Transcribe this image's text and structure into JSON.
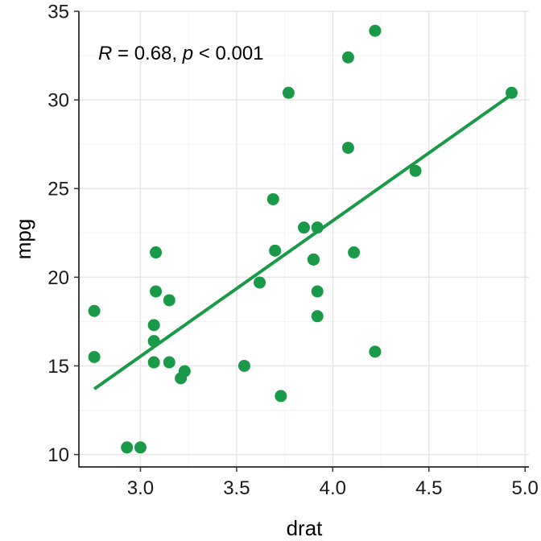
{
  "chart_data": {
    "type": "scatter",
    "title": "",
    "xlabel": "drat",
    "ylabel": "mpg",
    "xlim": [
      2.68,
      5.02
    ],
    "ylim": [
      9.3,
      35.0
    ],
    "x_ticks": [
      3.0,
      3.5,
      4.0,
      4.5,
      5.0
    ],
    "x_tick_labels": [
      "3.0",
      "3.5",
      "4.0",
      "4.5",
      "5.0"
    ],
    "y_ticks": [
      10,
      15,
      20,
      25,
      30,
      35
    ],
    "y_tick_labels": [
      "10",
      "15",
      "20",
      "25",
      "30",
      "35"
    ],
    "grid": true,
    "legend": "none",
    "point_color": "#1a9a48",
    "line_color": "#1a9a48",
    "annotation": {
      "r_symbol": "R",
      "r_text": " = 0.68, ",
      "p_symbol": "p",
      "p_text": " < 0.001"
    },
    "points": [
      {
        "x": 3.9,
        "y": 21.0
      },
      {
        "x": 3.9,
        "y": 21.0
      },
      {
        "x": 3.85,
        "y": 22.8
      },
      {
        "x": 3.08,
        "y": 21.4
      },
      {
        "x": 3.15,
        "y": 18.7
      },
      {
        "x": 2.76,
        "y": 18.1
      },
      {
        "x": 3.21,
        "y": 14.3
      },
      {
        "x": 3.69,
        "y": 24.4
      },
      {
        "x": 3.92,
        "y": 22.8
      },
      {
        "x": 3.92,
        "y": 19.2
      },
      {
        "x": 3.92,
        "y": 17.8
      },
      {
        "x": 3.07,
        "y": 16.4
      },
      {
        "x": 3.07,
        "y": 17.3
      },
      {
        "x": 3.07,
        "y": 15.2
      },
      {
        "x": 2.93,
        "y": 10.4
      },
      {
        "x": 3.0,
        "y": 10.4
      },
      {
        "x": 3.23,
        "y": 14.7
      },
      {
        "x": 4.08,
        "y": 32.4
      },
      {
        "x": 4.93,
        "y": 30.4
      },
      {
        "x": 4.22,
        "y": 33.9
      },
      {
        "x": 3.7,
        "y": 21.5
      },
      {
        "x": 2.76,
        "y": 15.5
      },
      {
        "x": 3.15,
        "y": 15.2
      },
      {
        "x": 3.73,
        "y": 13.3
      },
      {
        "x": 3.08,
        "y": 19.2
      },
      {
        "x": 4.08,
        "y": 27.3
      },
      {
        "x": 4.43,
        "y": 26.0
      },
      {
        "x": 3.77,
        "y": 30.4
      },
      {
        "x": 4.22,
        "y": 15.8
      },
      {
        "x": 3.62,
        "y": 19.7
      },
      {
        "x": 3.54,
        "y": 15.0
      },
      {
        "x": 4.11,
        "y": 21.4
      }
    ],
    "fit_line": {
      "x": [
        2.76,
        4.93
      ],
      "y": [
        13.7,
        30.3
      ]
    }
  }
}
